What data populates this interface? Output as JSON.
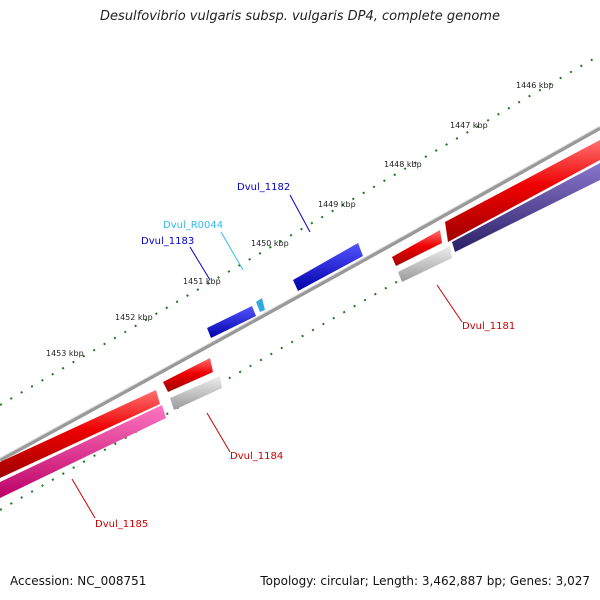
{
  "title": "Desulfovibrio vulgaris subsp. vulgaris DP4, complete genome",
  "footer": {
    "accession": "Accession: NC_008751",
    "summary": "Topology: circular; Length: 3,462,887 bp; Genes: 3,027"
  },
  "ticks": [
    "1446 kbp",
    "1447 kbp",
    "1448 kbp",
    "1449 kbp",
    "1450 kbp",
    "1451 kbp",
    "1452 kbp",
    "1453 kbp"
  ],
  "genes": [
    {
      "label": "Dvul_1182",
      "color": "#0000cc"
    },
    {
      "label": "Dvul_R0044",
      "color": "#33bbee"
    },
    {
      "label": "Dvul_1183",
      "color": "#0000cc"
    },
    {
      "label": "Dvul_1181",
      "color": "#cc0000"
    },
    {
      "label": "Dvul_1184",
      "color": "#cc0000"
    },
    {
      "label": "Dvul_1185",
      "color": "#cc0000"
    }
  ],
  "colors": {
    "backbone": "#888888",
    "cds_red": "#ee0000",
    "cds_blue": "#0000ee",
    "rna_cyan": "#33aadd",
    "gray_feature": "#bbbbbb",
    "magenta_feature": "#ee1188",
    "navy_feature": "#443388",
    "tick_green": "#1a7a1a"
  }
}
